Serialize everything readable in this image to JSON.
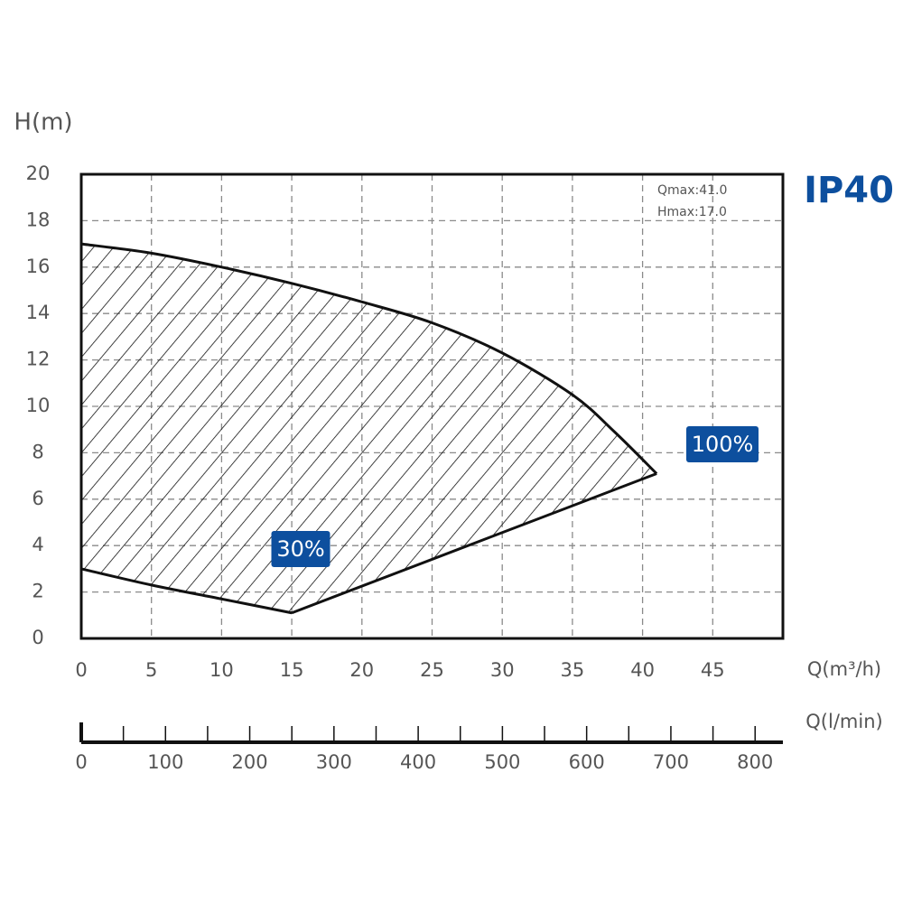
{
  "chart_data": {
    "type": "line",
    "title": "IP40",
    "y_label": "H(m)",
    "x_label": "Q(m³/h)",
    "x2_label": "Q(l/min)",
    "annotations": [
      "Qmax:41.0",
      "Hmax:17.0"
    ],
    "xlim": [
      0,
      50
    ],
    "xticks": [
      0,
      5,
      10,
      15,
      20,
      25,
      30,
      35,
      40,
      45
    ],
    "ylim": [
      0,
      20
    ],
    "yticks": [
      0,
      2,
      4,
      6,
      8,
      10,
      12,
      14,
      16,
      18,
      20
    ],
    "x2lim": [
      0,
      833
    ],
    "x2ticks": [
      0,
      100,
      200,
      300,
      400,
      500,
      600,
      700,
      800
    ],
    "x2minor_ticks": [
      50,
      150,
      250,
      350,
      450,
      550,
      650,
      750
    ],
    "grid": true,
    "badge_color": "#0d4f9e",
    "series": [
      {
        "name": "100%",
        "color": "#111111",
        "x": [
          0,
          5,
          10,
          15,
          20,
          25,
          30,
          35,
          38,
          41
        ],
        "values": [
          17.0,
          16.6,
          16.0,
          15.3,
          14.5,
          13.6,
          12.3,
          10.5,
          8.9,
          7.1
        ]
      },
      {
        "name": "30%",
        "color": "#111111",
        "x": [
          0,
          5,
          10,
          15
        ],
        "values": [
          3.0,
          2.3,
          1.7,
          1.1
        ]
      },
      {
        "color": "#111111",
        "x": [
          15,
          41
        ],
        "values": [
          1.1,
          7.1
        ]
      }
    ]
  }
}
